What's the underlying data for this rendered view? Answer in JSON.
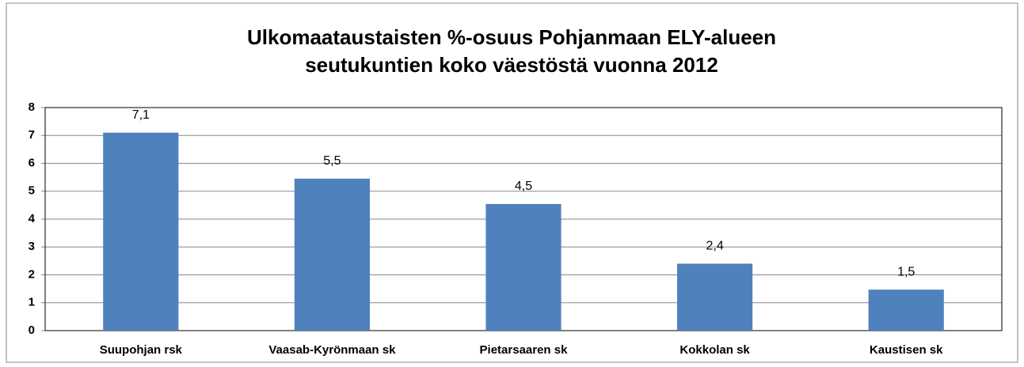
{
  "chart_data": {
    "type": "bar",
    "title": [
      "Ulkomaataustaisten %-osuus Pohjanmaan ELY-alueen",
      "seutukuntien koko väestöstä vuonna 2012"
    ],
    "categories": [
      "Suupohjan rsk",
      "Vaasab-Kyrönmaan sk",
      "Pietarsaaren sk",
      "Kokkolan sk",
      "Kaustisen sk"
    ],
    "values": [
      7.1,
      5.45,
      4.54,
      2.4,
      1.47
    ],
    "value_labels": [
      "7,1",
      "5,5",
      "4,5",
      "2,4",
      "1,5"
    ],
    "color": "#4f81bd",
    "ylim": [
      0,
      8
    ],
    "yticks": [
      0,
      1,
      2,
      3,
      4,
      5,
      6,
      7,
      8
    ],
    "grid": true
  }
}
